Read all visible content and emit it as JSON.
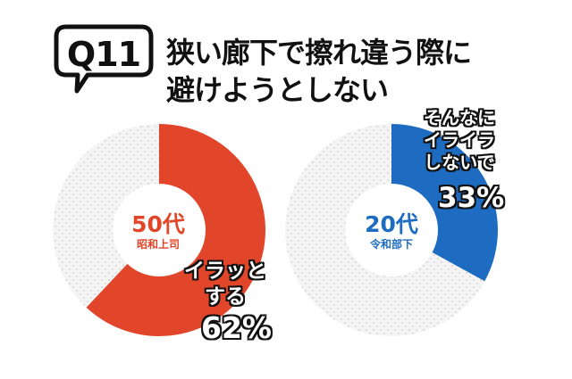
{
  "question": {
    "number": "Q11",
    "title_line1": "狭い廊下で擦れ違う際に",
    "title_line2": "避けようとしない"
  },
  "chart_data": [
    {
      "type": "pie",
      "center_label": "50代",
      "center_sublabel": "昭和上司",
      "slices": [
        {
          "label": "イラッとする",
          "value": 62,
          "color": "#e2462a",
          "text_lines": [
            "イラッと",
            "する"
          ],
          "value_label": "62%"
        },
        {
          "label": "",
          "value": 38,
          "color": "#f4f4f4"
        }
      ]
    },
    {
      "type": "pie",
      "center_label": "20代",
      "center_sublabel": "令和部下",
      "slices": [
        {
          "label": "そんなにイライラしないで",
          "value": 33,
          "color": "#1d6cc1",
          "text_lines": [
            "そんなに",
            "イライラ",
            "しないで"
          ],
          "value_label": "33%"
        },
        {
          "label": "",
          "value": 67,
          "color": "#f4f4f4"
        }
      ]
    }
  ]
}
